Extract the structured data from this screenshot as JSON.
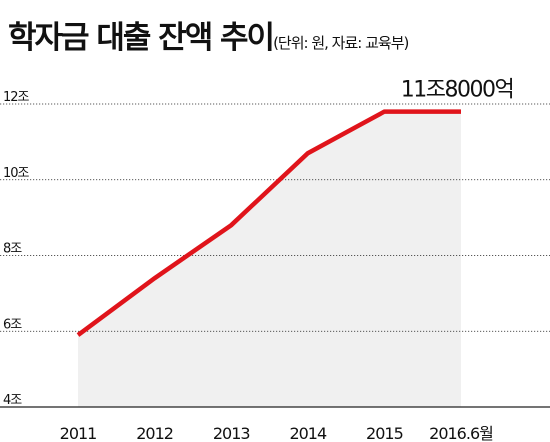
{
  "header": {
    "title": "학자금 대출 잔액 추이",
    "subtitle": "(단위: 원, 자료: 교육부)"
  },
  "colors": {
    "line": "#e0141b",
    "area": "#f0f0f0",
    "grid": "#222222"
  },
  "chart_data": {
    "type": "area",
    "title": "학자금 대출 잔액 추이",
    "subtitle": "(단위: 원, 자료: 교육부)",
    "categories": [
      "2011",
      "2012",
      "2013",
      "2014",
      "2015",
      "2016.6월"
    ],
    "x_tick_labels": [
      "2011",
      "2012",
      "2013",
      "2014",
      "2015",
      "2016.6월"
    ],
    "series": [
      {
        "values": [
          5.9,
          7.4,
          8.8,
          10.7,
          11.8,
          11.8
        ]
      }
    ],
    "ylim": [
      4,
      12
    ],
    "y_ticks": [
      4,
      6,
      8,
      10,
      12
    ],
    "y_tick_labels": [
      "4조",
      "6조",
      "8조",
      "10조",
      "12조"
    ],
    "grid": true,
    "annotations": [
      {
        "text": "11조8000억",
        "series_index": 0,
        "point_index": 5
      }
    ]
  }
}
